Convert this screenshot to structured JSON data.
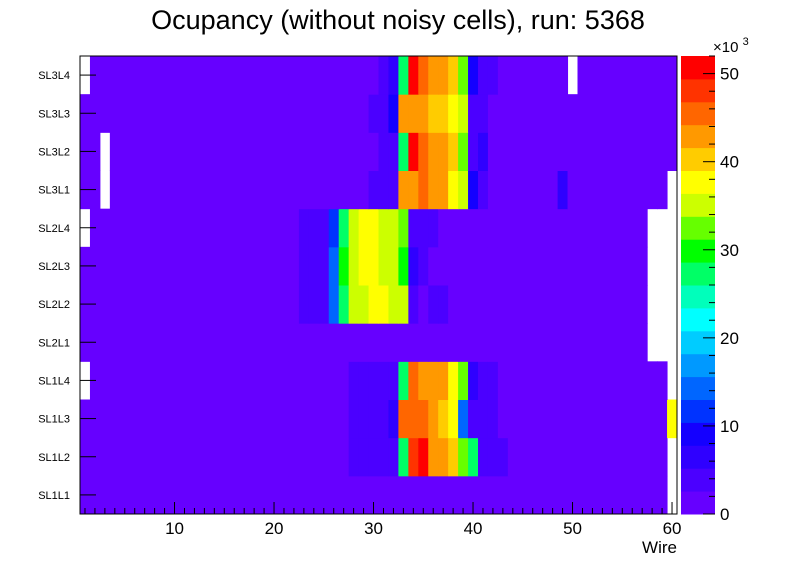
{
  "chart_data": {
    "type": "heatmap",
    "title": "Ocupancy (without noisy cells), run: 5368",
    "xlabel": "Wire",
    "ylabel": "",
    "x_range": [
      0.5,
      60.5
    ],
    "x_ticks": [
      10,
      20,
      30,
      40,
      50,
      60
    ],
    "layers": [
      "SL1L1",
      "SL1L2",
      "SL1L3",
      "SL1L4",
      "SL2L1",
      "SL2L2",
      "SL2L3",
      "SL2L4",
      "SL3L1",
      "SL3L2",
      "SL3L3",
      "SL3L4"
    ],
    "z_range": [
      0,
      52
    ],
    "z_ticks": [
      0,
      10,
      20,
      30,
      40,
      50
    ],
    "z_multiplier": "×10",
    "z_multiplier_exp": "3",
    "background_level": 1,
    "rows": [
      {
        "layer": "SL1L1",
        "empty": [
          60
        ],
        "cells": []
      },
      {
        "layer": "SL1L2",
        "empty": [
          60
        ],
        "cells": [
          [
            28,
            3
          ],
          [
            29,
            3
          ],
          [
            30,
            3
          ],
          [
            31,
            3
          ],
          [
            32,
            4
          ],
          [
            33,
            28
          ],
          [
            34,
            48
          ],
          [
            35,
            50
          ],
          [
            36,
            42
          ],
          [
            37,
            42
          ],
          [
            38,
            40
          ],
          [
            39,
            32
          ],
          [
            40,
            26
          ],
          [
            41,
            4
          ],
          [
            42,
            4
          ],
          [
            43,
            4
          ]
        ]
      },
      {
        "layer": "SL1L3",
        "empty": [],
        "cells": [
          [
            28,
            3
          ],
          [
            29,
            3
          ],
          [
            30,
            3
          ],
          [
            31,
            3
          ],
          [
            32,
            6
          ],
          [
            33,
            46
          ],
          [
            34,
            46
          ],
          [
            35,
            46
          ],
          [
            36,
            44
          ],
          [
            37,
            40
          ],
          [
            38,
            38
          ],
          [
            39,
            14
          ],
          [
            40,
            4
          ],
          [
            41,
            4
          ],
          [
            42,
            4
          ],
          [
            60,
            38
          ]
        ]
      },
      {
        "layer": "SL1L4",
        "empty": [
          1,
          60
        ],
        "cells": [
          [
            28,
            3
          ],
          [
            29,
            3
          ],
          [
            30,
            3
          ],
          [
            31,
            3
          ],
          [
            32,
            4
          ],
          [
            33,
            28
          ],
          [
            34,
            46
          ],
          [
            35,
            44
          ],
          [
            36,
            44
          ],
          [
            37,
            42
          ],
          [
            38,
            38
          ],
          [
            39,
            32
          ],
          [
            40,
            6
          ],
          [
            41,
            4
          ],
          [
            42,
            4
          ]
        ]
      },
      {
        "layer": "SL2L1",
        "empty": [
          58,
          59,
          60
        ],
        "cells": []
      },
      {
        "layer": "SL2L2",
        "empty": [
          58,
          59,
          60
        ],
        "cells": [
          [
            23,
            3
          ],
          [
            24,
            3
          ],
          [
            25,
            3
          ],
          [
            26,
            14
          ],
          [
            27,
            28
          ],
          [
            28,
            34
          ],
          [
            29,
            36
          ],
          [
            30,
            38
          ],
          [
            31,
            38
          ],
          [
            32,
            36
          ],
          [
            33,
            36
          ],
          [
            34,
            4
          ],
          [
            35,
            2
          ],
          [
            36,
            4
          ],
          [
            37,
            4
          ]
        ]
      },
      {
        "layer": "SL2L3",
        "empty": [
          58,
          59,
          60
        ],
        "cells": [
          [
            23,
            3
          ],
          [
            24,
            3
          ],
          [
            25,
            4
          ],
          [
            26,
            14
          ],
          [
            27,
            30
          ],
          [
            28,
            36
          ],
          [
            29,
            38
          ],
          [
            30,
            38
          ],
          [
            31,
            36
          ],
          [
            32,
            34
          ],
          [
            33,
            30
          ],
          [
            34,
            6
          ],
          [
            35,
            4
          ]
        ]
      },
      {
        "layer": "SL2L4",
        "empty": [
          1,
          58,
          59,
          60
        ],
        "cells": [
          [
            23,
            3
          ],
          [
            24,
            3
          ],
          [
            25,
            3
          ],
          [
            26,
            12
          ],
          [
            27,
            28
          ],
          [
            28,
            34
          ],
          [
            29,
            38
          ],
          [
            30,
            38
          ],
          [
            31,
            36
          ],
          [
            32,
            34
          ],
          [
            33,
            32
          ],
          [
            34,
            4
          ],
          [
            35,
            4
          ],
          [
            36,
            4
          ]
        ]
      },
      {
        "layer": "SL3L1",
        "empty": [
          3,
          60
        ],
        "cells": [
          [
            30,
            3
          ],
          [
            31,
            3
          ],
          [
            32,
            4
          ],
          [
            33,
            44
          ],
          [
            34,
            44
          ],
          [
            35,
            46
          ],
          [
            36,
            44
          ],
          [
            37,
            42
          ],
          [
            38,
            38
          ],
          [
            39,
            36
          ],
          [
            40,
            8
          ],
          [
            41,
            4
          ],
          [
            49,
            6
          ]
        ]
      },
      {
        "layer": "SL3L2",
        "empty": [
          3
        ],
        "cells": [
          [
            31,
            3
          ],
          [
            32,
            4
          ],
          [
            33,
            28
          ],
          [
            34,
            50
          ],
          [
            35,
            46
          ],
          [
            36,
            44
          ],
          [
            37,
            42
          ],
          [
            38,
            40
          ],
          [
            39,
            32
          ],
          [
            40,
            4
          ],
          [
            41,
            6
          ]
        ]
      },
      {
        "layer": "SL3L3",
        "empty": [],
        "cells": [
          [
            30,
            3
          ],
          [
            31,
            3
          ],
          [
            32,
            8
          ],
          [
            33,
            44
          ],
          [
            34,
            42
          ],
          [
            35,
            44
          ],
          [
            36,
            40
          ],
          [
            37,
            40
          ],
          [
            38,
            38
          ],
          [
            39,
            36
          ],
          [
            40,
            4
          ],
          [
            41,
            4
          ]
        ]
      },
      {
        "layer": "SL3L4",
        "empty": [
          1,
          50
        ],
        "cells": [
          [
            31,
            3
          ],
          [
            32,
            6
          ],
          [
            33,
            28
          ],
          [
            34,
            50
          ],
          [
            35,
            46
          ],
          [
            36,
            42
          ],
          [
            37,
            42
          ],
          [
            38,
            40
          ],
          [
            39,
            32
          ],
          [
            40,
            8
          ],
          [
            41,
            4
          ],
          [
            42,
            4
          ]
        ]
      }
    ]
  }
}
